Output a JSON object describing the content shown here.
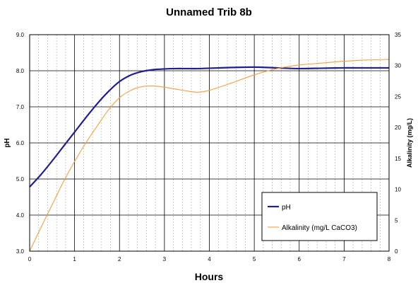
{
  "chart_data": {
    "type": "line",
    "title": "Unnamed Trib 8b",
    "xlabel": "Hours",
    "ylabel": "pH",
    "y2label": "Alkalinity (mg/L)",
    "xlim": [
      0,
      8
    ],
    "ylim": [
      3.0,
      9.0
    ],
    "y2lim": [
      0,
      35
    ],
    "x_ticks": [
      "0",
      "1",
      "2",
      "3",
      "4",
      "5",
      "6",
      "7",
      "8"
    ],
    "y_ticks": [
      "3.0",
      "4.0",
      "5.0",
      "6.0",
      "7.0",
      "8.0",
      "9.0"
    ],
    "y2_ticks": [
      "0",
      "5",
      "10",
      "15",
      "20",
      "25",
      "30",
      "35"
    ],
    "grid": true,
    "legend_position": "bottom-right",
    "series": [
      {
        "name": "pH",
        "axis": "left",
        "color": "#1f1f8f",
        "x": [
          0,
          0.25,
          0.5,
          0.75,
          1.0,
          1.25,
          1.5,
          1.75,
          2.0,
          2.25,
          2.5,
          2.75,
          3.0,
          3.25,
          3.5,
          3.75,
          4.0,
          4.5,
          5.0,
          5.5,
          6.0,
          6.5,
          7.0,
          7.5,
          8.0
        ],
        "values": [
          4.78,
          5.12,
          5.5,
          5.9,
          6.3,
          6.7,
          7.08,
          7.42,
          7.7,
          7.88,
          7.98,
          8.03,
          8.05,
          8.06,
          8.06,
          8.06,
          8.07,
          8.09,
          8.1,
          8.08,
          8.06,
          8.07,
          8.08,
          8.08,
          8.08
        ]
      },
      {
        "name": "Alkalinity (mg/L CaCO3)",
        "axis": "right",
        "color": "#f5a040",
        "x": [
          0,
          0.25,
          0.5,
          0.75,
          1.0,
          1.25,
          1.5,
          1.75,
          2.0,
          2.25,
          2.5,
          2.75,
          3.0,
          3.25,
          3.5,
          3.75,
          4.0,
          4.5,
          5.0,
          5.5,
          6.0,
          6.5,
          7.0,
          7.5,
          8.0
        ],
        "values": [
          0,
          3.8,
          7.5,
          11.2,
          14.5,
          17.5,
          20.2,
          22.8,
          24.8,
          26.0,
          26.6,
          26.7,
          26.5,
          26.2,
          25.9,
          25.7,
          26.0,
          27.2,
          28.5,
          29.5,
          30.1,
          30.4,
          30.7,
          30.9,
          31.0
        ]
      }
    ]
  }
}
